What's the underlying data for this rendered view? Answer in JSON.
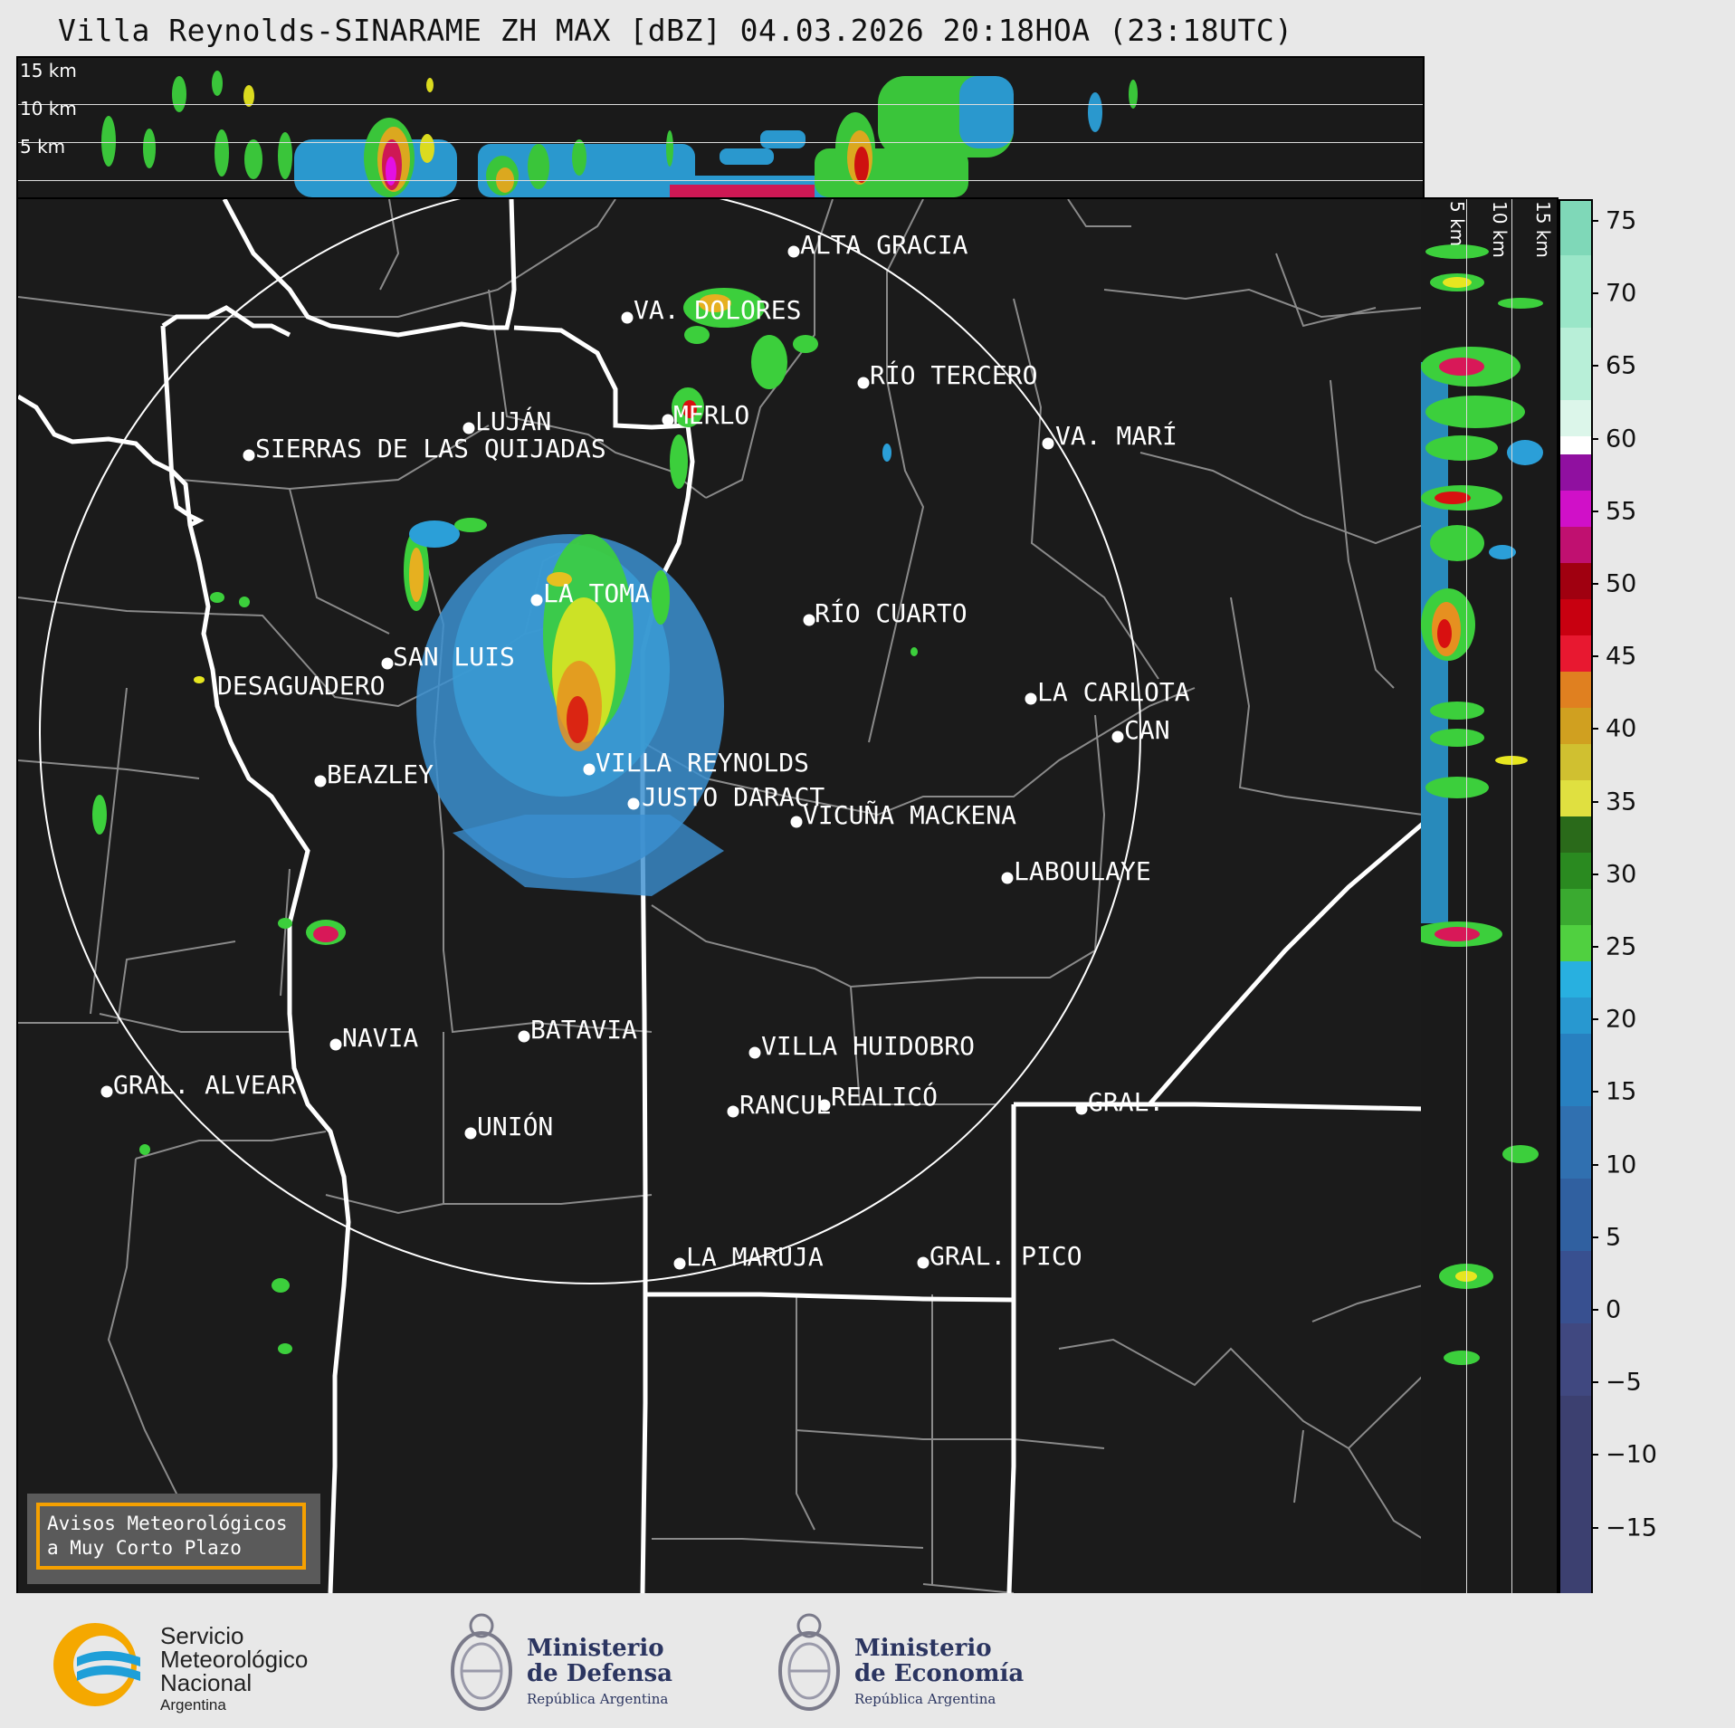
{
  "title": "Villa Reynolds-SINARAME ZH MAX [dBZ] 04.03.2026 20:18HOA (23:18UTC)",
  "heights": {
    "h15": "15 km",
    "h10": "10 km",
    "h5": "5 km"
  },
  "cities": [
    {
      "id": "alta-gracia",
      "label": "ALTA GRACIA"
    },
    {
      "id": "va-dolores",
      "label": "VA. DOLORES"
    },
    {
      "id": "rio-tercero",
      "label": "RÍO TERCERO"
    },
    {
      "id": "merlo",
      "label": "MERLO"
    },
    {
      "id": "lujan",
      "label": "LUJÁN"
    },
    {
      "id": "sierras",
      "label": "SIERRAS DE LAS QUIJADAS"
    },
    {
      "id": "va-mari",
      "label": "VA. MARÍ"
    },
    {
      "id": "la-toma",
      "label": "LA TOMA"
    },
    {
      "id": "rio-cuarto",
      "label": "RÍO CUARTO"
    },
    {
      "id": "san-luis",
      "label": "SAN LUIS"
    },
    {
      "id": "desaguadero",
      "label": "DESAGUADERO"
    },
    {
      "id": "la-carlota",
      "label": "LA CARLOTA"
    },
    {
      "id": "can",
      "label": "CAN"
    },
    {
      "id": "villa-reynolds",
      "label": "VILLA REYNOLDS"
    },
    {
      "id": "beazley",
      "label": "BEAZLEY"
    },
    {
      "id": "justo-daract",
      "label": "JUSTO DARACT"
    },
    {
      "id": "vicuna-mackena",
      "label": "VICUÑA MACKENA"
    },
    {
      "id": "laboulaye",
      "label": "LABOULAYE"
    },
    {
      "id": "navia",
      "label": "NAVIA"
    },
    {
      "id": "batavia",
      "label": "BATAVIA"
    },
    {
      "id": "villa-huidobro",
      "label": "VILLA HUIDOBRO"
    },
    {
      "id": "gral-alvear",
      "label": "GRAL. ALVEAR"
    },
    {
      "id": "rancul",
      "label": "RANCUL"
    },
    {
      "id": "realico",
      "label": "REALICÓ"
    },
    {
      "id": "gral",
      "label": "GRAL."
    },
    {
      "id": "union",
      "label": "UNIÓN"
    },
    {
      "id": "la-maruja",
      "label": "LA MARUJA"
    },
    {
      "id": "gral-pico",
      "label": "GRAL. PICO"
    }
  ],
  "colorbar": {
    "unit": "dBZ",
    "ticks": [
      "75",
      "70",
      "65",
      "60",
      "55",
      "50",
      "45",
      "40",
      "35",
      "30",
      "25",
      "20",
      "15",
      "10",
      "5",
      "0",
      "−5",
      "−10",
      "−15"
    ]
  },
  "avisos": {
    "line1": "Avisos Meteorológicos",
    "line2": "a Muy Corto Plazo"
  },
  "logos": {
    "smn": {
      "line1": "Servicio",
      "line2": "Meteorológico",
      "line3": "Nacional",
      "line4": "Argentina"
    },
    "defensa": {
      "line1": "Ministerio",
      "line2": "de Defensa",
      "line3": "República Argentina"
    },
    "economia": {
      "line1": "Ministerio",
      "line2": "de Economía",
      "line3": "República Argentina"
    }
  },
  "colors": {
    "background": "#1b1b1b",
    "page": "#e8e8e8",
    "accent": "#f5a000",
    "smn_blue": "#1e9fd8",
    "smn_yellow": "#f5a800"
  }
}
